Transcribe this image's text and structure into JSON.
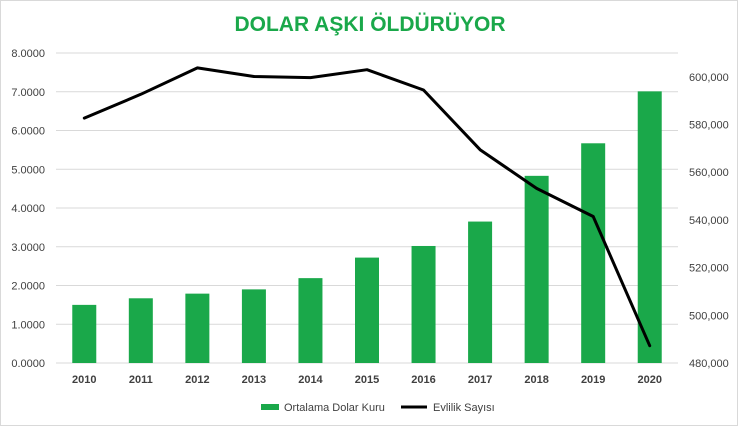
{
  "chart_data": {
    "type": "bar",
    "title": "DOLAR AŞKI ÖLDÜRÜYOR",
    "categories": [
      "2010",
      "2011",
      "2012",
      "2013",
      "2014",
      "2015",
      "2016",
      "2017",
      "2018",
      "2019",
      "2020"
    ],
    "series": [
      {
        "name": "Ortalama Dolar Kuru",
        "type": "bar",
        "axis": "left",
        "color": "#1aa84a",
        "values": [
          1.5,
          1.67,
          1.79,
          1.9,
          2.19,
          2.72,
          3.02,
          3.65,
          4.83,
          5.67,
          7.01
        ]
      },
      {
        "name": "Evlilik Sayısı",
        "type": "line",
        "axis": "right",
        "color": "#000000",
        "values": [
          582715,
          592665,
          603751,
          600138,
          599704,
          602982,
          594493,
          569459,
          553202,
          541424,
          487270
        ]
      }
    ],
    "y_left": {
      "ylim": [
        0,
        8
      ],
      "ticks": [
        0,
        1,
        2,
        3,
        4,
        5,
        6,
        7,
        8
      ],
      "tick_labels": [
        "0.0000",
        "1.0000",
        "2.0000",
        "3.0000",
        "4.0000",
        "5.0000",
        "6.0000",
        "7.0000",
        "8.0000"
      ]
    },
    "y_right": {
      "ylim": [
        480000,
        610000
      ],
      "ticks": [
        480000,
        500000,
        520000,
        540000,
        560000,
        580000,
        600000
      ],
      "tick_labels": [
        "480,000",
        "500,000",
        "520,000",
        "540,000",
        "560,000",
        "580,000",
        "600,000"
      ]
    },
    "grid": true,
    "legend": "bottom"
  }
}
